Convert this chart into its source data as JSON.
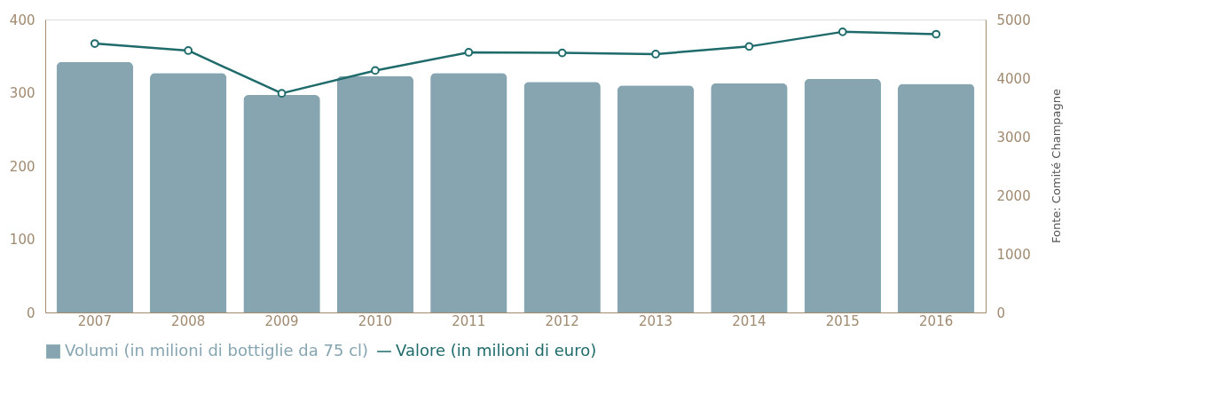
{
  "chart_data": {
    "type": "bar",
    "categories": [
      "2007",
      "2008",
      "2009",
      "2010",
      "2011",
      "2012",
      "2013",
      "2014",
      "2015",
      "2016"
    ],
    "series": [
      {
        "name": "Volumi (in milioni di bottiglie da 75 cl)",
        "color": "#86a5b1",
        "values": [
          342,
          327,
          297,
          323,
          327,
          315,
          310,
          313,
          319,
          312
        ]
      },
      {
        "name": "Valore (in milioni di euro)",
        "type": "line",
        "axis": "y2",
        "color": "#1f6b6b",
        "values": [
          4590,
          4470,
          3740,
          4130,
          4440,
          4430,
          4410,
          4540,
          4790,
          4750
        ]
      }
    ],
    "ylim": [
      0,
      400
    ],
    "yticks": [
      0,
      100,
      200,
      300,
      400
    ],
    "y2lim": [
      0,
      5000
    ],
    "y2ticks": [
      0,
      1000,
      2000,
      3000,
      4000,
      5000
    ],
    "legend": "bottom",
    "marker": "circle",
    "annotations": [
      "Fonte: Comité Champagne"
    ]
  }
}
